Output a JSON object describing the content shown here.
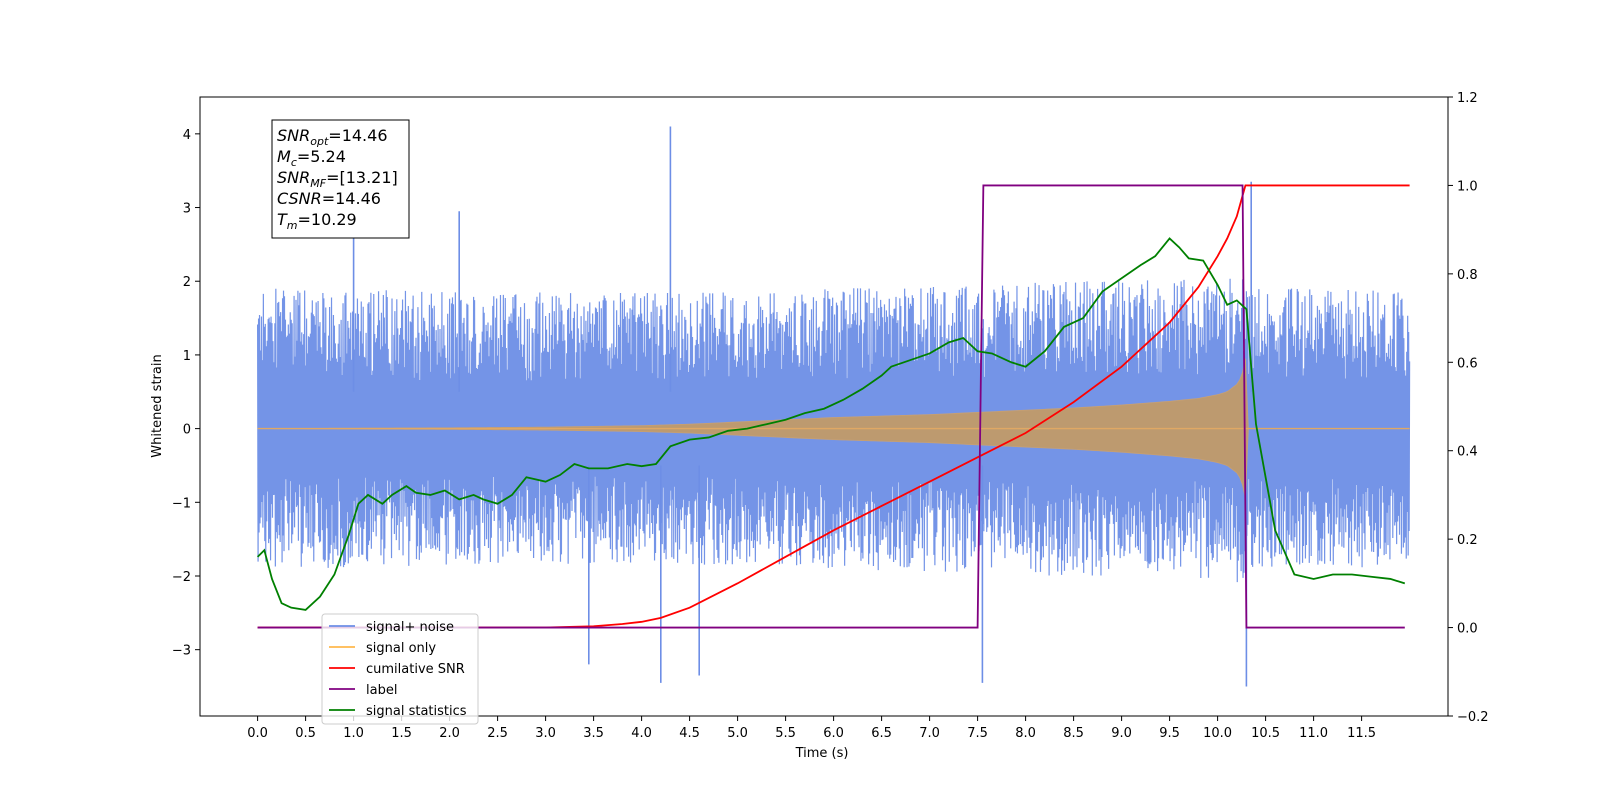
{
  "chart_data": {
    "type": "line",
    "title": "",
    "xlabel": "Time (s)",
    "ylabel": "Whitened strain",
    "y2label": "",
    "xlim": [
      -0.6,
      12.4
    ],
    "ylim": [
      -3.9,
      4.5
    ],
    "y2lim": [
      -0.2,
      1.2
    ],
    "x_ticks": [
      0.0,
      0.5,
      1.0,
      1.5,
      2.0,
      2.5,
      3.0,
      3.5,
      4.0,
      4.5,
      5.0,
      5.5,
      6.0,
      6.5,
      7.0,
      7.5,
      8.0,
      8.5,
      9.0,
      9.5,
      10.0,
      10.5,
      11.0,
      11.5
    ],
    "x_tick_labels": [
      "0.0",
      "0.5",
      "1.0",
      "1.5",
      "2.0",
      "2.5",
      "3.0",
      "3.5",
      "4.0",
      "4.5",
      "5.0",
      "5.5",
      "6.0",
      "6.5",
      "7.0",
      "7.5",
      "8.0",
      "8.5",
      "9.0",
      "9.5",
      "10.0",
      "10.5",
      "11.0",
      "11.5"
    ],
    "y_ticks": [
      -3,
      -2,
      -1,
      0,
      1,
      2,
      3,
      4
    ],
    "y_tick_labels": [
      "−3",
      "−2",
      "−1",
      "0",
      "1",
      "2",
      "3",
      "4"
    ],
    "y2_ticks": [
      -0.2,
      0.0,
      0.2,
      0.4,
      0.6,
      0.8,
      1.0,
      1.2
    ],
    "y2_tick_labels": [
      "−0.2",
      "0.0",
      "0.2",
      "0.4",
      "0.6",
      "0.8",
      "1.0",
      "1.2"
    ],
    "grid": false,
    "legend_position": "lower-left",
    "annotation": [
      {
        "main": "SNR",
        "sub": "opt",
        "rest": "=14.46"
      },
      {
        "main": "M",
        "sub": "c",
        "rest": "=5.24"
      },
      {
        "main": "SNR",
        "sub": "MF",
        "rest": "=[13.21]"
      },
      {
        "main": "CSNR",
        "sub": "",
        "rest": "=14.46"
      },
      {
        "main": "T",
        "sub": "m",
        "rest": "=10.29"
      }
    ],
    "series": [
      {
        "name": "signal+ noise",
        "color": "#6d8ee6",
        "axis": "left",
        "kind": "noise",
        "x_range": [
          0.0,
          12.0
        ],
        "envelope_x": [
          0.0,
          1.0,
          2.0,
          3.0,
          4.0,
          5.0,
          6.0,
          7.0,
          8.0,
          9.0,
          10.0,
          10.29,
          10.3,
          12.0
        ],
        "envelope_upper": [
          1.9,
          1.9,
          1.85,
          1.85,
          1.85,
          1.85,
          1.9,
          1.95,
          2.0,
          2.0,
          2.05,
          2.1,
          1.9,
          1.9
        ],
        "envelope_lower": [
          -1.9,
          -1.9,
          -1.85,
          -1.85,
          -1.85,
          -1.85,
          -1.9,
          -1.95,
          -2.0,
          -2.0,
          -2.05,
          -2.1,
          -1.9,
          -1.9
        ],
        "spikes_x": [
          4.3,
          1.0,
          2.1,
          10.35,
          7.55,
          10.3,
          4.2,
          4.6,
          3.45
        ],
        "spikes_y": [
          4.1,
          3.05,
          2.95,
          3.35,
          -3.45,
          -3.5,
          -3.45,
          -3.35,
          -3.2
        ]
      },
      {
        "name": "signal only",
        "color": "#ffb84d",
        "axis": "left",
        "kind": "chirp",
        "x": [
          0.0,
          1.0,
          2.0,
          3.0,
          4.0,
          4.5,
          5.0,
          5.5,
          6.0,
          6.5,
          7.0,
          7.5,
          8.0,
          8.5,
          9.0,
          9.5,
          9.8,
          10.0,
          10.1,
          10.2,
          10.25,
          10.29,
          10.3,
          12.0
        ],
        "amplitude": [
          0.0,
          0.005,
          0.01,
          0.02,
          0.04,
          0.06,
          0.09,
          0.12,
          0.15,
          0.17,
          0.19,
          0.22,
          0.25,
          0.28,
          0.32,
          0.37,
          0.41,
          0.46,
          0.5,
          0.6,
          0.7,
          0.95,
          0.0,
          0.0
        ]
      },
      {
        "name": "cumilative SNR",
        "color": "#ff0000",
        "axis": "right",
        "x": [
          0.0,
          2.0,
          3.0,
          3.5,
          3.8,
          4.0,
          4.2,
          4.5,
          5.0,
          5.5,
          6.0,
          6.5,
          7.0,
          7.5,
          8.0,
          8.5,
          9.0,
          9.5,
          9.8,
          10.0,
          10.1,
          10.2,
          10.29,
          10.3,
          12.0
        ],
        "values": [
          0.0,
          0.0,
          0.0,
          0.003,
          0.008,
          0.013,
          0.022,
          0.045,
          0.1,
          0.16,
          0.22,
          0.275,
          0.33,
          0.385,
          0.44,
          0.51,
          0.59,
          0.69,
          0.77,
          0.84,
          0.88,
          0.93,
          1.0,
          1.0,
          1.0
        ]
      },
      {
        "name": "label",
        "color": "#800080",
        "axis": "right",
        "x": [
          0.0,
          7.5,
          7.56,
          10.26,
          10.3,
          11.95
        ],
        "values": [
          0.0,
          0.0,
          1.0,
          1.0,
          0.0,
          0.0
        ]
      },
      {
        "name": "signal statistics",
        "color": "#008000",
        "axis": "right",
        "x": [
          0.0,
          0.07,
          0.15,
          0.25,
          0.35,
          0.5,
          0.65,
          0.8,
          0.95,
          1.05,
          1.15,
          1.3,
          1.4,
          1.55,
          1.65,
          1.8,
          1.95,
          2.1,
          2.25,
          2.35,
          2.5,
          2.65,
          2.8,
          3.0,
          3.15,
          3.3,
          3.45,
          3.65,
          3.85,
          4.0,
          4.15,
          4.3,
          4.5,
          4.7,
          4.9,
          5.1,
          5.3,
          5.5,
          5.7,
          5.9,
          6.1,
          6.3,
          6.5,
          6.6,
          6.8,
          7.0,
          7.2,
          7.35,
          7.5,
          7.65,
          7.85,
          8.0,
          8.2,
          8.4,
          8.6,
          8.8,
          9.0,
          9.2,
          9.35,
          9.5,
          9.6,
          9.7,
          9.85,
          10.0,
          10.1,
          10.2,
          10.3,
          10.4,
          10.6,
          10.8,
          11.0,
          11.2,
          11.4,
          11.6,
          11.8,
          11.95
        ],
        "values": [
          0.16,
          0.175,
          0.11,
          0.055,
          0.045,
          0.04,
          0.07,
          0.12,
          0.21,
          0.28,
          0.3,
          0.28,
          0.3,
          0.32,
          0.305,
          0.3,
          0.31,
          0.29,
          0.3,
          0.29,
          0.28,
          0.3,
          0.34,
          0.33,
          0.345,
          0.37,
          0.36,
          0.36,
          0.37,
          0.365,
          0.37,
          0.41,
          0.425,
          0.43,
          0.445,
          0.45,
          0.46,
          0.47,
          0.485,
          0.495,
          0.515,
          0.54,
          0.57,
          0.59,
          0.605,
          0.62,
          0.645,
          0.655,
          0.625,
          0.62,
          0.6,
          0.59,
          0.625,
          0.68,
          0.7,
          0.76,
          0.79,
          0.82,
          0.84,
          0.88,
          0.86,
          0.835,
          0.83,
          0.775,
          0.73,
          0.74,
          0.72,
          0.46,
          0.22,
          0.12,
          0.11,
          0.12,
          0.12,
          0.115,
          0.11,
          0.1
        ]
      }
    ]
  }
}
